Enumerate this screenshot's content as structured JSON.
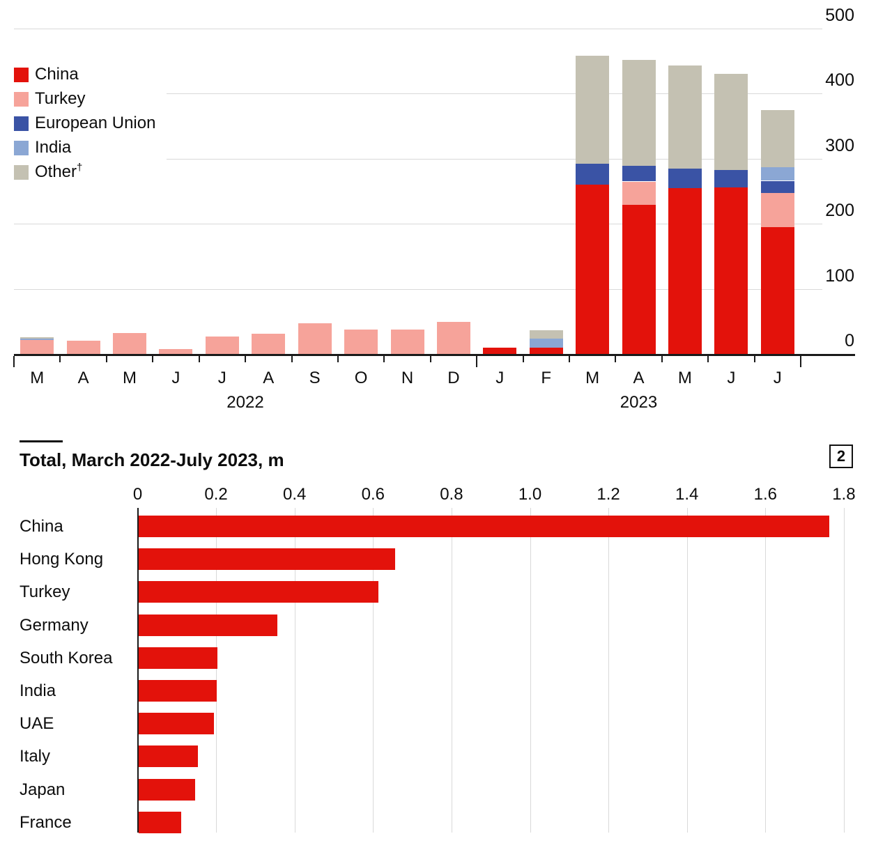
{
  "colors": {
    "china_red": "#e3120b",
    "turkey_pink": "#f6a39a",
    "eu_blue": "#3a53a5",
    "india_lightblue": "#8ba7d4",
    "other_khaki": "#c4c1b2",
    "grid": "#d9d9d9",
    "axis": "#1a1a1a",
    "text": "#0d0d0d"
  },
  "chart_data": [
    {
      "id": "monthly-stacked",
      "type": "bar",
      "stacked": true,
      "title": "",
      "xlabel": "",
      "ylabel": "",
      "ylim": [
        0,
        500
      ],
      "y_ticks": [
        0,
        100,
        200,
        300,
        400,
        500
      ],
      "grid": "horizontal",
      "legend_position": "top-left",
      "categories": [
        "M",
        "A",
        "M",
        "J",
        "J",
        "A",
        "S",
        "O",
        "N",
        "D",
        "J",
        "F",
        "M",
        "A",
        "M",
        "J",
        "J"
      ],
      "year_groups": [
        {
          "label": "2022",
          "span": 10
        },
        {
          "label": "2023",
          "span": 7
        }
      ],
      "series": [
        {
          "name": "China",
          "superscript": "",
          "color_key": "china_red",
          "values": [
            0,
            0,
            0,
            0,
            0,
            0,
            0,
            0,
            0,
            0,
            10,
            10,
            260,
            229,
            255,
            256,
            195
          ]
        },
        {
          "name": "Turkey",
          "superscript": "",
          "color_key": "turkey_pink",
          "values": [
            21,
            20,
            32,
            8,
            27,
            31,
            47,
            37,
            37,
            49,
            0,
            0,
            0,
            36,
            0,
            0,
            52
          ]
        },
        {
          "name": "European Union",
          "superscript": "",
          "color_key": "eu_blue",
          "values": [
            0,
            0,
            0,
            0,
            0,
            0,
            0,
            0,
            0,
            0,
            0,
            0,
            32,
            24,
            30,
            27,
            19
          ]
        },
        {
          "name": "India",
          "superscript": "",
          "color_key": "india_lightblue",
          "values": [
            3,
            0,
            0,
            0,
            0,
            0,
            0,
            0,
            0,
            0,
            0,
            14,
            0,
            0,
            0,
            0,
            21
          ]
        },
        {
          "name": "Other",
          "superscript": "†",
          "color_key": "other_khaki",
          "values": [
            2,
            0,
            0,
            0,
            0,
            0,
            0,
            0,
            0,
            0,
            0,
            12,
            166,
            163,
            158,
            147,
            88
          ]
        }
      ]
    },
    {
      "id": "totals",
      "type": "bar-horizontal",
      "title": "Total, March 2022-July 2023, m",
      "panel_badge": "2",
      "xlim": [
        0,
        1.8
      ],
      "x_tick_labels": [
        "0",
        "0.2",
        "0.4",
        "0.6",
        "0.8",
        "1.0",
        "1.2",
        "1.4",
        "1.6",
        "1.8"
      ],
      "x_tick_values": [
        0,
        0.2,
        0.4,
        0.6,
        0.8,
        1.0,
        1.2,
        1.4,
        1.6,
        1.8
      ],
      "grid": "vertical",
      "bar_color_key": "china_red",
      "categories": [
        "China",
        "Hong Kong",
        "Turkey",
        "Germany",
        "South Korea",
        "India",
        "UAE",
        "Italy",
        "Japan",
        "France"
      ],
      "values": [
        1.76,
        0.654,
        0.611,
        0.353,
        0.2,
        0.198,
        0.192,
        0.15,
        0.143,
        0.109
      ]
    }
  ]
}
